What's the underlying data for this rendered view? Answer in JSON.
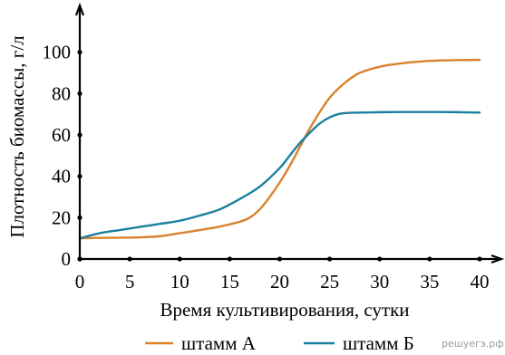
{
  "chart_data": {
    "type": "line",
    "xlabel": "Время культивирования, сутки",
    "ylabel": "Плотность биомассы, г/л",
    "xlim": [
      0,
      40
    ],
    "ylim": [
      0,
      120
    ],
    "x_ticks": [
      0,
      5,
      10,
      15,
      20,
      25,
      30,
      35,
      40
    ],
    "y_ticks": [
      0,
      20,
      40,
      60,
      80,
      100
    ],
    "grid": false,
    "legend_position": "bottom",
    "series": [
      {
        "name": "штамм А",
        "color": "#d9822b",
        "x": [
          0,
          2,
          4,
          6,
          8,
          10,
          12,
          14,
          16,
          17,
          18,
          19,
          20,
          21,
          22,
          23,
          24,
          25,
          26,
          27,
          28,
          30,
          32,
          34,
          36,
          38,
          40
        ],
        "y": [
          10,
          10.2,
          10.3,
          10.5,
          11,
          12.5,
          14,
          15.7,
          18,
          20,
          24,
          30,
          37,
          45,
          54,
          63,
          71,
          78,
          83,
          87,
          90,
          93,
          94.5,
          95.5,
          96,
          96.2,
          96.3
        ]
      },
      {
        "name": "штамм Б",
        "color": "#1c7fa0",
        "x": [
          0,
          2,
          4,
          6,
          8,
          10,
          12,
          14,
          16,
          18,
          20,
          21,
          22,
          23,
          24,
          25,
          26,
          27,
          28,
          30,
          32,
          34,
          36,
          38,
          40
        ],
        "y": [
          10,
          12.5,
          14,
          15.5,
          17,
          18.5,
          21,
          24,
          29,
          35,
          44,
          50,
          56,
          61,
          65.5,
          68.5,
          70.2,
          70.7,
          70.8,
          71,
          71.1,
          71.1,
          71.1,
          71,
          70.8
        ]
      }
    ],
    "watermark": "решуегэ.рф"
  }
}
